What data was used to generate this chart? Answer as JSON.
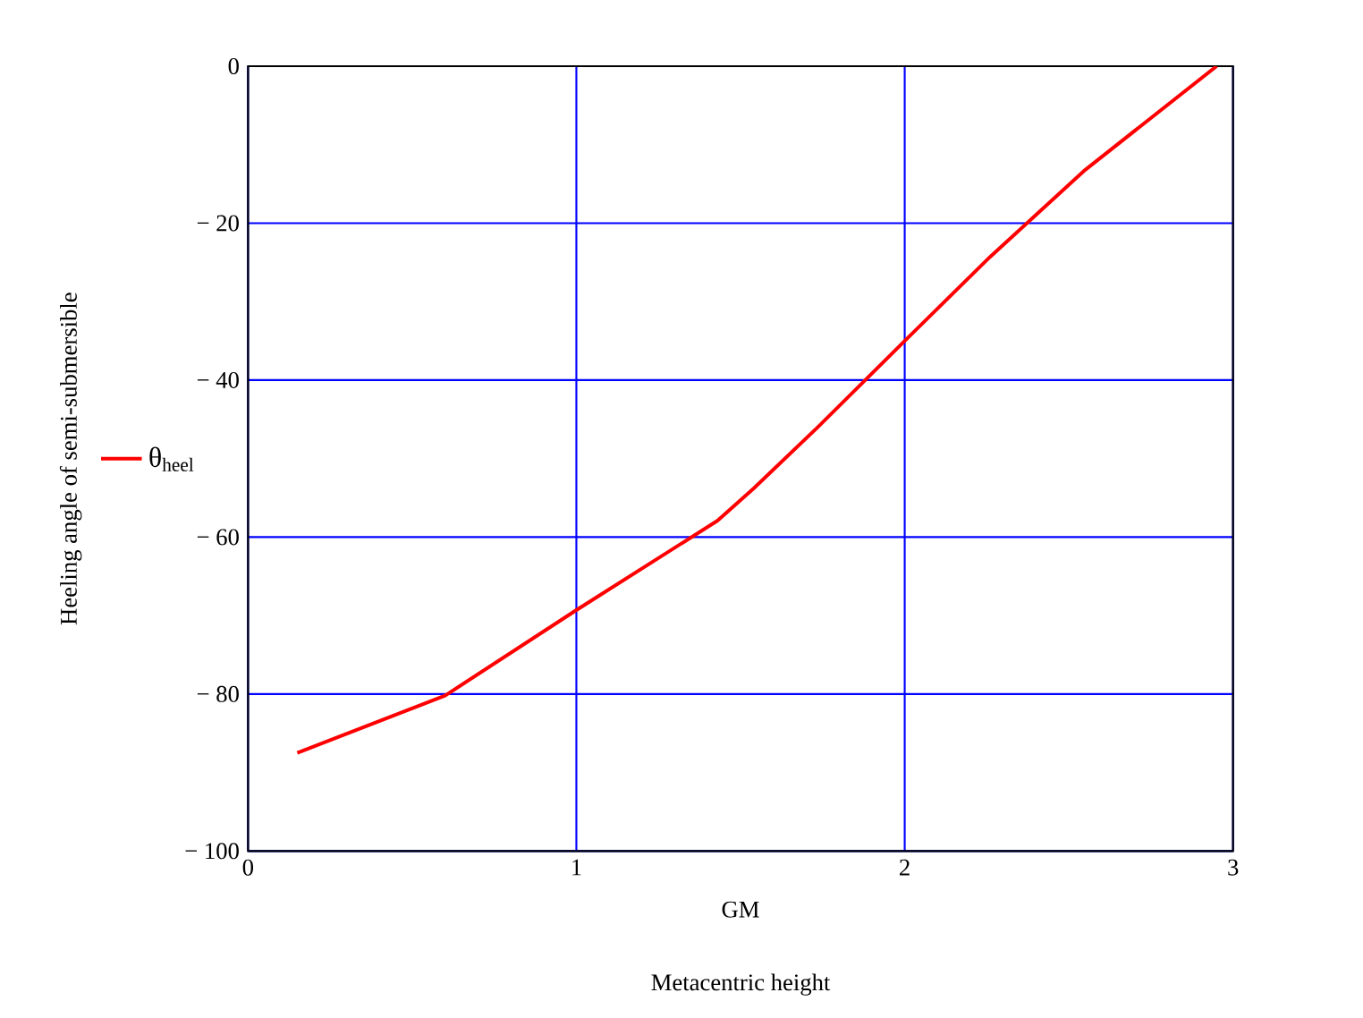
{
  "chart_data": {
    "type": "line",
    "xlabel": "GM",
    "ylabel": "Heeling angle of semi-submersible",
    "annotations": [
      "Metacentric height"
    ],
    "x": [
      0.15,
      0.6,
      1.0,
      1.43,
      1.54,
      1.735,
      2.0,
      2.26,
      2.55,
      2.95
    ],
    "series": [
      {
        "name": "θ$_{heel}$",
        "color": "#ff0000",
        "values": [
          -87.5,
          -80.2,
          -69.3,
          -57.9,
          -53.8,
          -46,
          -35,
          -24.3,
          -13.2,
          0
        ]
      }
    ],
    "xlim": [
      0,
      3
    ],
    "xticks": [
      0,
      1,
      2,
      3
    ],
    "ylim": [
      -100,
      0
    ],
    "yticks": [
      {
        "value": -100,
        "label": "− 100"
      },
      {
        "value": -80,
        "label": "− 80"
      },
      {
        "value": -60,
        "label": "− 60"
      },
      {
        "value": -40,
        "label": "− 40"
      },
      {
        "value": -20,
        "label": "− 20"
      },
      {
        "value": 0,
        "label": "0"
      }
    ],
    "grid": true,
    "legend": "left",
    "marker": "none",
    "line_style": "solid"
  }
}
